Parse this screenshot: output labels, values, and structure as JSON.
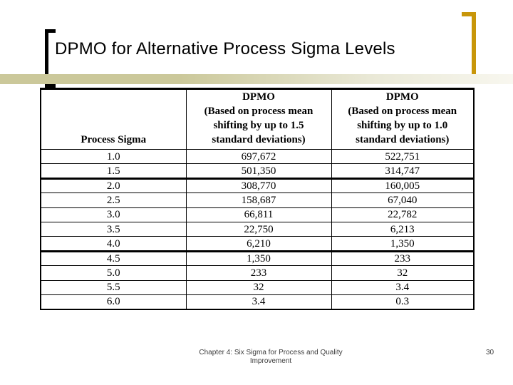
{
  "slide": {
    "title": "DPMO for Alternative Process Sigma Levels",
    "decorations": {
      "left_bracket_color": "#000000",
      "right_bracket_color": "#C8960A",
      "divider_bar_color_left": "#CBC89A",
      "divider_bar_color_right": "#F8F7EF"
    },
    "table": {
      "columns": [
        {
          "header": "Process Sigma"
        },
        {
          "header": "DPMO\n(Based on process mean\nshifting by up to 1.5\nstandard deviations)"
        },
        {
          "header": "DPMO\n(Based on process mean\nshifting by up to 1.0\nstandard deviations)"
        }
      ],
      "rows": [
        {
          "sigma": "1.0",
          "dpmo_shift_1_5": "697,672",
          "dpmo_shift_1_0": "522,751"
        },
        {
          "sigma": "1.5",
          "dpmo_shift_1_5": "501,350",
          "dpmo_shift_1_0": "314,747"
        },
        {
          "sigma": "2.0",
          "dpmo_shift_1_5": "308,770",
          "dpmo_shift_1_0": "160,005"
        },
        {
          "sigma": "2.5",
          "dpmo_shift_1_5": "158,687",
          "dpmo_shift_1_0": "67,040"
        },
        {
          "sigma": "3.0",
          "dpmo_shift_1_5": "66,811",
          "dpmo_shift_1_0": "22,782"
        },
        {
          "sigma": "3.5",
          "dpmo_shift_1_5": "22,750",
          "dpmo_shift_1_0": "6,213"
        },
        {
          "sigma": "4.0",
          "dpmo_shift_1_5": "6,210",
          "dpmo_shift_1_0": "1,350"
        },
        {
          "sigma": "4.5",
          "dpmo_shift_1_5": "1,350",
          "dpmo_shift_1_0": "233"
        },
        {
          "sigma": "5.0",
          "dpmo_shift_1_5": "233",
          "dpmo_shift_1_0": "32"
        },
        {
          "sigma": "5.5",
          "dpmo_shift_1_5": "32",
          "dpmo_shift_1_0": "3.4"
        },
        {
          "sigma": "6.0",
          "dpmo_shift_1_5": "3.4",
          "dpmo_shift_1_0": "0.3"
        }
      ],
      "thick_border_above_rows": [
        2,
        7
      ]
    },
    "footer": {
      "caption": "Chapter 4: Six Sigma for Process and Quality\nImprovement",
      "page_number": "30"
    }
  }
}
